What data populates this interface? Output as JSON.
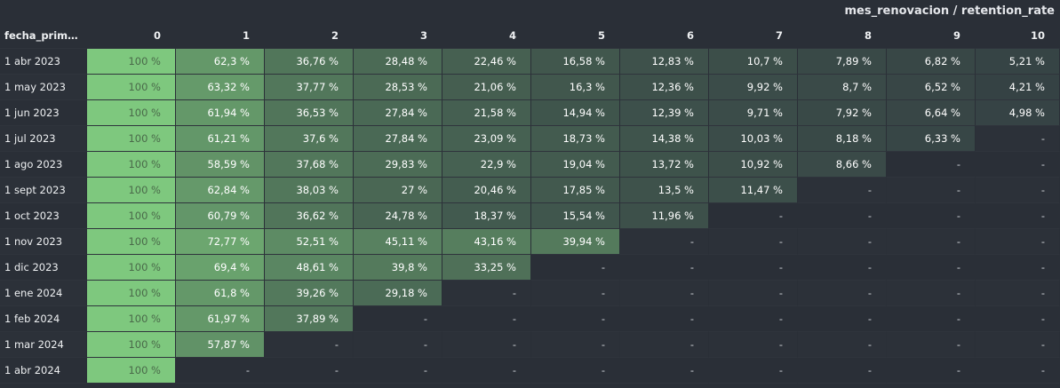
{
  "title": "mes_renovacion / retention_rate",
  "row_header_label": "fecha_primer...",
  "colors": {
    "background": "#2a2f37",
    "low": "#303840",
    "high": "#7ec87e"
  },
  "chart_data": {
    "type": "heatmap",
    "columns": [
      "0",
      "1",
      "2",
      "3",
      "4",
      "5",
      "6",
      "7",
      "8",
      "9",
      "10"
    ],
    "rows": [
      "1 abr 2023",
      "1 may 2023",
      "1 jun 2023",
      "1 jul 2023",
      "1 ago 2023",
      "1 sept 2023",
      "1 oct 2023",
      "1 nov 2023",
      "1 dic 2023",
      "1 ene 2024",
      "1 feb 2024",
      "1 mar 2024",
      "1 abr 2024"
    ],
    "values": [
      [
        100,
        62.3,
        36.76,
        28.48,
        22.46,
        16.58,
        12.83,
        10.7,
        7.89,
        6.82,
        5.21
      ],
      [
        100,
        63.32,
        37.77,
        28.53,
        21.06,
        16.3,
        12.36,
        9.92,
        8.7,
        6.52,
        4.21
      ],
      [
        100,
        61.94,
        36.53,
        27.84,
        21.58,
        14.94,
        12.39,
        9.71,
        7.92,
        6.64,
        4.98
      ],
      [
        100,
        61.21,
        37.6,
        27.84,
        23.09,
        18.73,
        14.38,
        10.03,
        8.18,
        6.33,
        null
      ],
      [
        100,
        58.59,
        37.68,
        29.83,
        22.9,
        19.04,
        13.72,
        10.92,
        8.66,
        null,
        null
      ],
      [
        100,
        62.84,
        38.03,
        27,
        20.46,
        17.85,
        13.5,
        11.47,
        null,
        null,
        null
      ],
      [
        100,
        60.79,
        36.62,
        24.78,
        18.37,
        15.54,
        11.96,
        null,
        null,
        null,
        null
      ],
      [
        100,
        72.77,
        52.51,
        45.11,
        43.16,
        39.94,
        null,
        null,
        null,
        null,
        null
      ],
      [
        100,
        69.4,
        48.61,
        39.8,
        33.25,
        null,
        null,
        null,
        null,
        null,
        null
      ],
      [
        100,
        61.8,
        39.26,
        29.18,
        null,
        null,
        null,
        null,
        null,
        null,
        null
      ],
      [
        100,
        61.97,
        37.89,
        null,
        null,
        null,
        null,
        null,
        null,
        null,
        null
      ],
      [
        100,
        57.87,
        null,
        null,
        null,
        null,
        null,
        null,
        null,
        null,
        null
      ],
      [
        100,
        null,
        null,
        null,
        null,
        null,
        null,
        null,
        null,
        null,
        null
      ]
    ],
    "value_suffix": " %",
    "empty_label": "-"
  }
}
